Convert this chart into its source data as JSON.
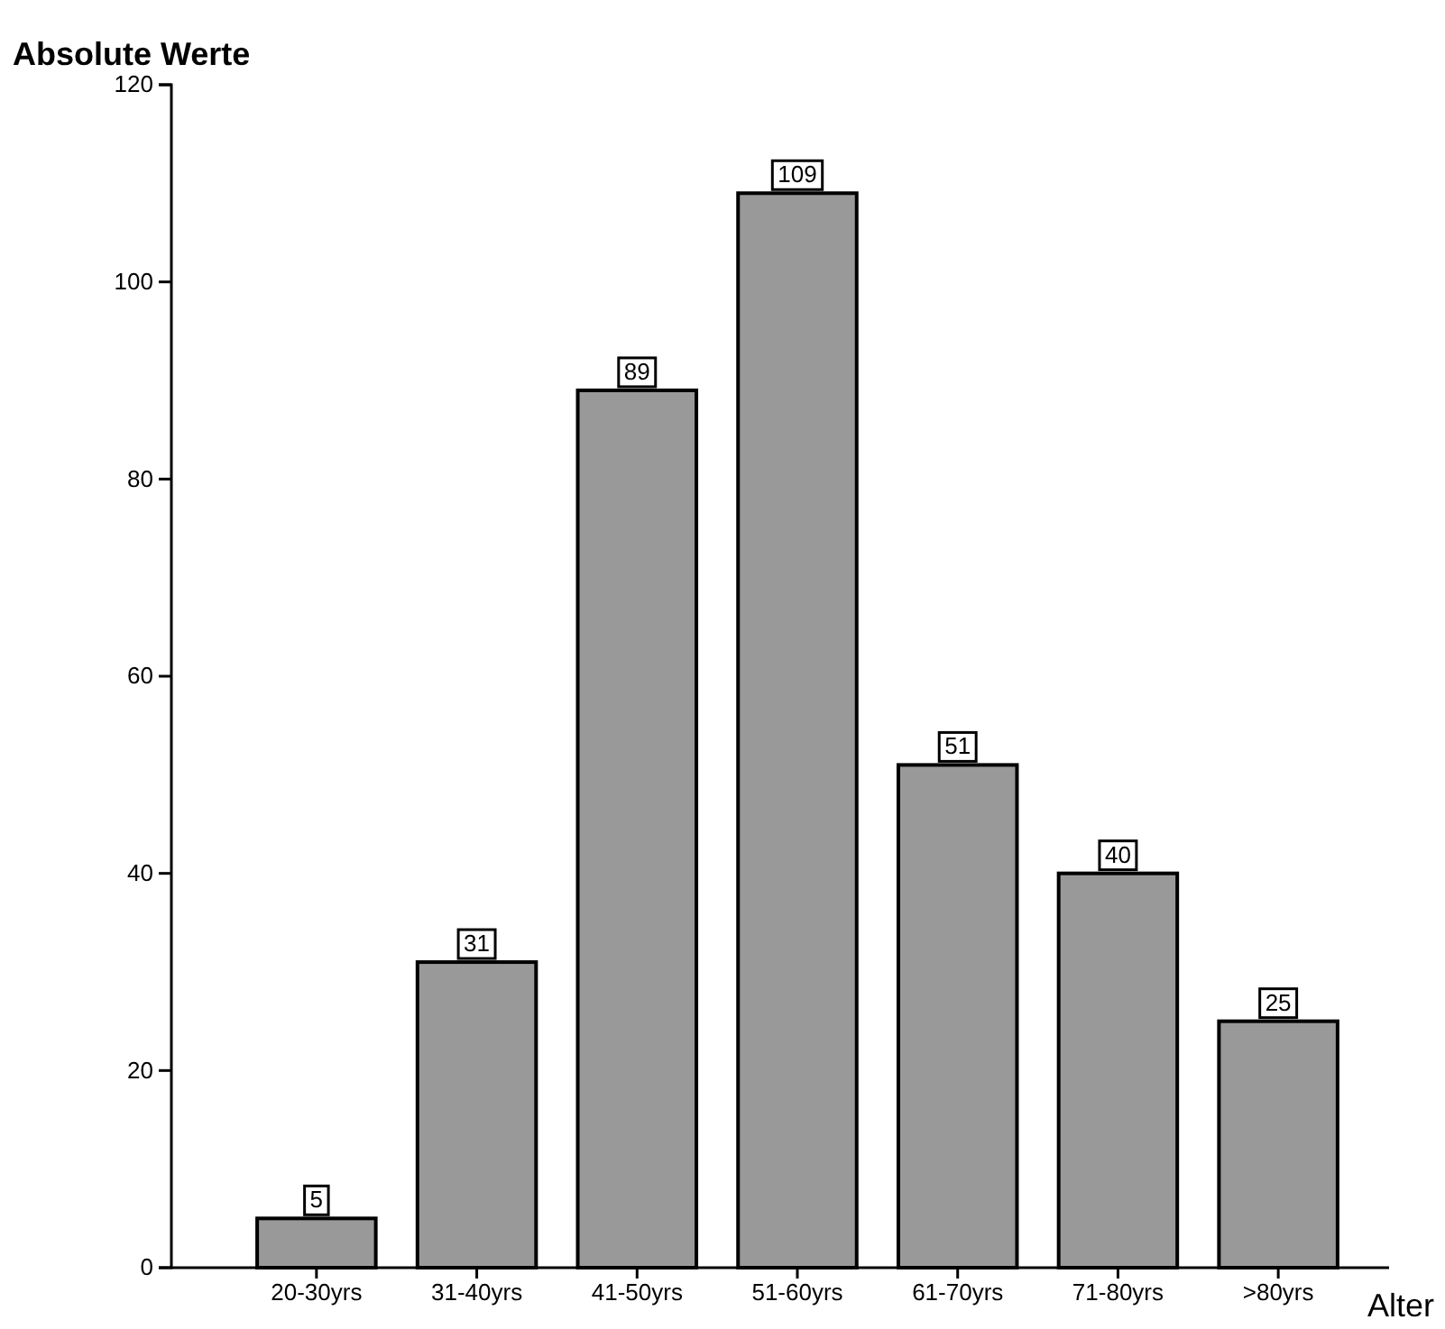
{
  "chart_data": {
    "type": "bar",
    "xlabel": "Alter",
    "ylabel": "Absolute Werte",
    "categories": [
      "20-30yrs",
      "31-40yrs",
      "41-50yrs",
      "51-60yrs",
      "61-70yrs",
      "71-80yrs",
      ">80yrs"
    ],
    "values": [
      5,
      31,
      89,
      109,
      51,
      40,
      25
    ],
    "color": "#999999",
    "ylim": [
      0,
      120
    ],
    "yticks": [
      0,
      20,
      40,
      60,
      80,
      100,
      120
    ],
    "data_labels": true
  }
}
